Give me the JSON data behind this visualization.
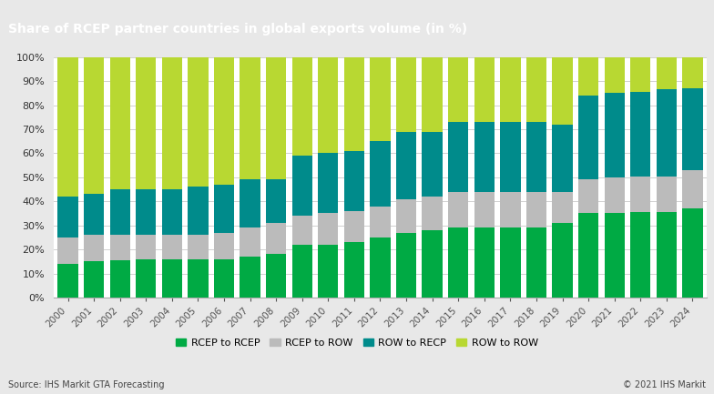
{
  "title": "Share of RCEP partner countries in global exports volume (in %)",
  "years": [
    2000,
    2001,
    2002,
    2003,
    2004,
    2005,
    2006,
    2007,
    2008,
    2009,
    2010,
    2011,
    2012,
    2013,
    2014,
    2015,
    2016,
    2017,
    2018,
    2019,
    2020,
    2021,
    2022,
    2023,
    2024
  ],
  "rcep_to_rcep": [
    14,
    15,
    15.5,
    16,
    16,
    16,
    16,
    17,
    18,
    22,
    22,
    23,
    25,
    27,
    28,
    29,
    29,
    29,
    29,
    31,
    35,
    35,
    35.5,
    35.5,
    37
  ],
  "rcep_to_row": [
    11,
    11,
    10.5,
    10,
    10,
    10,
    11,
    12,
    13,
    12,
    13,
    13,
    13,
    14,
    14,
    15,
    15,
    15,
    15,
    13,
    14,
    15,
    15,
    15,
    16
  ],
  "row_to_recp": [
    17,
    17,
    19,
    19,
    19,
    20,
    20,
    20,
    18,
    25,
    25,
    25,
    27,
    28,
    27,
    29,
    29,
    29,
    29,
    28,
    35,
    35,
    35,
    36,
    34
  ],
  "row_to_row": [
    58,
    57,
    55,
    55,
    55,
    54,
    53,
    51,
    51,
    41,
    40,
    39,
    35,
    31,
    31,
    27,
    27,
    27,
    27,
    28,
    16,
    15,
    14.5,
    13.5,
    13
  ],
  "colors": {
    "rcep_to_rcep": "#00aa44",
    "rcep_to_row": "#bbbbbb",
    "row_to_recp": "#008b8b",
    "row_to_row": "#b8d832"
  },
  "legend_labels": [
    "RCEP to RCEP",
    "RCEP to ROW",
    "ROW to RECP",
    "ROW to ROW"
  ],
  "title_bg_color": "#5f6062",
  "title_text_color": "#ffffff",
  "plot_bg_color": "#ffffff",
  "outer_bg_color": "#e8e8e8",
  "source_text": "Source: IHS Markit GTA Forecasting",
  "copyright_text": "© 2021 IHS Markit"
}
